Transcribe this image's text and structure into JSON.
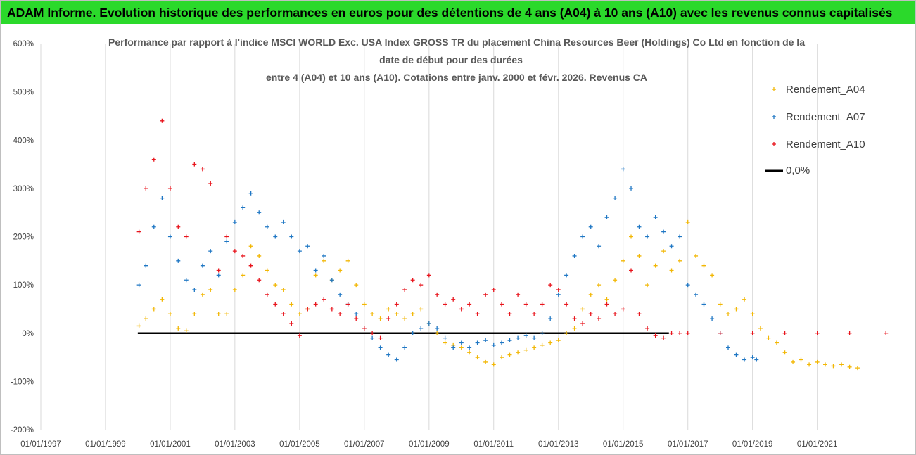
{
  "header": {
    "banner": "ADAM Informe. Evolution historique des performances en euros pour des détentions de 4 ans (A04) à 10 ans (A10) avec les revenus connus capitalisés"
  },
  "colors": {
    "banner_bg": "#2bd92b",
    "A04": "#f2b705",
    "A07": "#1f77c4",
    "A10": "#e8141c",
    "zero": "#000000",
    "grid": "#d9d9d9"
  },
  "chart_data": {
    "type": "scatter",
    "title_lines": [
      "Performance par rapport à l'indice MSCI WORLD Exc. USA Index GROSS TR  du placement China Resources Beer (Holdings) Co Ltd en fonction de la",
      "date de début pour des durées",
      "entre 4 (A04) et 10 ans (A10). Cotations entre janv. 2000 et févr. 2026. Revenus CA"
    ],
    "xlabel": "",
    "ylabel": "",
    "x_ticks": [
      "01/01/1997",
      "01/01/1999",
      "01/01/2001",
      "01/01/2003",
      "01/01/2005",
      "01/01/2007",
      "01/01/2009",
      "01/01/2011",
      "01/01/2013",
      "01/01/2015",
      "01/01/2017",
      "01/01/2019",
      "01/01/2021"
    ],
    "x_range": [
      "1997-01-01",
      "2023-03-01"
    ],
    "y_ticks": [
      "-200%",
      "-100%",
      "0%",
      "100%",
      "200%",
      "300%",
      "400%",
      "500%",
      "600%"
    ],
    "ylim": [
      -200,
      600
    ],
    "grid": "vertical",
    "legend_position": "right",
    "legend": [
      {
        "label": "Rendement_A04",
        "key": "A04",
        "marker": "+"
      },
      {
        "label": "Rendement_A07",
        "key": "A07",
        "marker": "+"
      },
      {
        "label": "Rendement_A10",
        "key": "A10",
        "marker": "+"
      },
      {
        "label": "0,0%",
        "key": "zero",
        "marker": "line"
      }
    ],
    "series": [
      {
        "name": "Rendement_A04",
        "key": "A04",
        "points": [
          [
            "2000-01-15",
            15
          ],
          [
            "2000-04-01",
            30
          ],
          [
            "2000-07-01",
            50
          ],
          [
            "2000-10-01",
            70
          ],
          [
            "2001-01-01",
            40
          ],
          [
            "2001-04-01",
            10
          ],
          [
            "2001-07-01",
            5
          ],
          [
            "2001-10-01",
            40
          ],
          [
            "2002-01-01",
            80
          ],
          [
            "2002-04-01",
            90
          ],
          [
            "2002-07-01",
            40
          ],
          [
            "2002-10-01",
            40
          ],
          [
            "2003-01-01",
            90
          ],
          [
            "2003-04-01",
            120
          ],
          [
            "2003-07-01",
            180
          ],
          [
            "2003-10-01",
            160
          ],
          [
            "2004-01-01",
            130
          ],
          [
            "2004-04-01",
            100
          ],
          [
            "2004-07-01",
            90
          ],
          [
            "2004-10-01",
            60
          ],
          [
            "2005-01-01",
            40
          ],
          [
            "2005-04-01",
            50
          ],
          [
            "2005-07-01",
            120
          ],
          [
            "2005-10-01",
            150
          ],
          [
            "2006-01-01",
            110
          ],
          [
            "2006-04-01",
            130
          ],
          [
            "2006-07-01",
            150
          ],
          [
            "2006-10-01",
            100
          ],
          [
            "2007-01-01",
            60
          ],
          [
            "2007-04-01",
            40
          ],
          [
            "2007-07-01",
            30
          ],
          [
            "2007-10-01",
            50
          ],
          [
            "2008-01-01",
            40
          ],
          [
            "2008-04-01",
            30
          ],
          [
            "2008-07-01",
            40
          ],
          [
            "2008-10-01",
            50
          ],
          [
            "2009-01-01",
            20
          ],
          [
            "2009-04-01",
            0
          ],
          [
            "2009-07-01",
            -20
          ],
          [
            "2009-10-01",
            -25
          ],
          [
            "2010-01-01",
            -30
          ],
          [
            "2010-04-01",
            -40
          ],
          [
            "2010-07-01",
            -50
          ],
          [
            "2010-10-01",
            -60
          ],
          [
            "2011-01-01",
            -65
          ],
          [
            "2011-04-01",
            -50
          ],
          [
            "2011-07-01",
            -45
          ],
          [
            "2011-10-01",
            -40
          ],
          [
            "2012-01-01",
            -35
          ],
          [
            "2012-04-01",
            -30
          ],
          [
            "2012-07-01",
            -25
          ],
          [
            "2012-10-01",
            -20
          ],
          [
            "2013-01-01",
            -15
          ],
          [
            "2013-04-01",
            0
          ],
          [
            "2013-07-01",
            10
          ],
          [
            "2013-10-01",
            50
          ],
          [
            "2014-01-01",
            80
          ],
          [
            "2014-04-01",
            100
          ],
          [
            "2014-07-01",
            70
          ],
          [
            "2014-10-01",
            110
          ],
          [
            "2015-01-01",
            150
          ],
          [
            "2015-04-01",
            200
          ],
          [
            "2015-07-01",
            160
          ],
          [
            "2015-10-01",
            100
          ],
          [
            "2016-01-01",
            140
          ],
          [
            "2016-04-01",
            170
          ],
          [
            "2016-07-01",
            130
          ],
          [
            "2016-10-01",
            150
          ],
          [
            "2017-01-01",
            230
          ],
          [
            "2017-04-01",
            160
          ],
          [
            "2017-07-01",
            140
          ],
          [
            "2017-10-01",
            120
          ],
          [
            "2018-01-01",
            60
          ],
          [
            "2018-04-01",
            40
          ],
          [
            "2018-07-01",
            50
          ],
          [
            "2018-10-01",
            70
          ],
          [
            "2019-01-01",
            40
          ],
          [
            "2019-04-01",
            10
          ],
          [
            "2019-07-01",
            -10
          ],
          [
            "2019-10-01",
            -20
          ],
          [
            "2020-01-01",
            -40
          ],
          [
            "2020-04-01",
            -60
          ],
          [
            "2020-07-01",
            -55
          ],
          [
            "2020-10-01",
            -65
          ],
          [
            "2021-01-01",
            -60
          ],
          [
            "2021-04-01",
            -65
          ],
          [
            "2021-07-01",
            -68
          ],
          [
            "2021-10-01",
            -65
          ],
          [
            "2022-01-01",
            -70
          ],
          [
            "2022-04-01",
            -72
          ]
        ]
      },
      {
        "name": "Rendement_A07",
        "key": "A07",
        "points": [
          [
            "2000-01-15",
            100
          ],
          [
            "2000-04-01",
            140
          ],
          [
            "2000-07-01",
            220
          ],
          [
            "2000-10-01",
            280
          ],
          [
            "2001-01-01",
            200
          ],
          [
            "2001-04-01",
            150
          ],
          [
            "2001-07-01",
            110
          ],
          [
            "2001-10-01",
            90
          ],
          [
            "2002-01-01",
            140
          ],
          [
            "2002-04-01",
            170
          ],
          [
            "2002-07-01",
            120
          ],
          [
            "2002-10-01",
            190
          ],
          [
            "2003-01-01",
            230
          ],
          [
            "2003-04-01",
            260
          ],
          [
            "2003-07-01",
            290
          ],
          [
            "2003-10-01",
            250
          ],
          [
            "2004-01-01",
            220
          ],
          [
            "2004-04-01",
            200
          ],
          [
            "2004-07-01",
            230
          ],
          [
            "2004-10-01",
            200
          ],
          [
            "2005-01-01",
            170
          ],
          [
            "2005-04-01",
            180
          ],
          [
            "2005-07-01",
            130
          ],
          [
            "2005-10-01",
            160
          ],
          [
            "2006-01-01",
            110
          ],
          [
            "2006-04-01",
            80
          ],
          [
            "2006-07-01",
            60
          ],
          [
            "2006-10-01",
            40
          ],
          [
            "2007-01-01",
            10
          ],
          [
            "2007-04-01",
            -10
          ],
          [
            "2007-07-01",
            -30
          ],
          [
            "2007-10-01",
            -45
          ],
          [
            "2008-01-01",
            -55
          ],
          [
            "2008-04-01",
            -30
          ],
          [
            "2008-07-01",
            0
          ],
          [
            "2008-10-01",
            10
          ],
          [
            "2009-01-01",
            20
          ],
          [
            "2009-04-01",
            10
          ],
          [
            "2009-07-01",
            -10
          ],
          [
            "2009-10-01",
            -30
          ],
          [
            "2010-01-01",
            -20
          ],
          [
            "2010-04-01",
            -30
          ],
          [
            "2010-07-01",
            -20
          ],
          [
            "2010-10-01",
            -15
          ],
          [
            "2011-01-01",
            -25
          ],
          [
            "2011-04-01",
            -20
          ],
          [
            "2011-07-01",
            -15
          ],
          [
            "2011-10-01",
            -10
          ],
          [
            "2012-01-01",
            -5
          ],
          [
            "2012-04-01",
            -10
          ],
          [
            "2012-07-01",
            0
          ],
          [
            "2012-10-01",
            30
          ],
          [
            "2013-01-01",
            80
          ],
          [
            "2013-04-01",
            120
          ],
          [
            "2013-07-01",
            160
          ],
          [
            "2013-10-01",
            200
          ],
          [
            "2014-01-01",
            220
          ],
          [
            "2014-04-01",
            180
          ],
          [
            "2014-07-01",
            240
          ],
          [
            "2014-10-01",
            280
          ],
          [
            "2015-01-01",
            340
          ],
          [
            "2015-04-01",
            300
          ],
          [
            "2015-07-01",
            220
          ],
          [
            "2015-10-01",
            200
          ],
          [
            "2016-01-01",
            240
          ],
          [
            "2016-04-01",
            210
          ],
          [
            "2016-07-01",
            180
          ],
          [
            "2016-10-01",
            200
          ],
          [
            "2017-01-01",
            100
          ],
          [
            "2017-04-01",
            80
          ],
          [
            "2017-07-01",
            60
          ],
          [
            "2017-10-01",
            30
          ],
          [
            "2018-01-01",
            0
          ],
          [
            "2018-04-01",
            -30
          ],
          [
            "2018-07-01",
            -45
          ],
          [
            "2018-10-01",
            -55
          ],
          [
            "2019-01-01",
            -50
          ],
          [
            "2019-02-15",
            -55
          ]
        ]
      },
      {
        "name": "Rendement_A10",
        "key": "A10",
        "points": [
          [
            "2000-01-15",
            210
          ],
          [
            "2000-04-01",
            300
          ],
          [
            "2000-07-01",
            360
          ],
          [
            "2000-10-01",
            440
          ],
          [
            "2001-01-01",
            300
          ],
          [
            "2001-04-01",
            220
          ],
          [
            "2001-07-01",
            200
          ],
          [
            "2001-10-01",
            350
          ],
          [
            "2002-01-01",
            340
          ],
          [
            "2002-04-01",
            310
          ],
          [
            "2002-07-01",
            130
          ],
          [
            "2002-10-01",
            200
          ],
          [
            "2003-01-01",
            170
          ],
          [
            "2003-04-01",
            160
          ],
          [
            "2003-07-01",
            140
          ],
          [
            "2003-10-01",
            110
          ],
          [
            "2004-01-01",
            80
          ],
          [
            "2004-04-01",
            60
          ],
          [
            "2004-07-01",
            40
          ],
          [
            "2004-10-01",
            20
          ],
          [
            "2005-01-01",
            -5
          ],
          [
            "2005-04-01",
            50
          ],
          [
            "2005-07-01",
            60
          ],
          [
            "2005-10-01",
            70
          ],
          [
            "2006-01-01",
            50
          ],
          [
            "2006-04-01",
            40
          ],
          [
            "2006-07-01",
            60
          ],
          [
            "2006-10-01",
            30
          ],
          [
            "2007-01-01",
            10
          ],
          [
            "2007-04-01",
            0
          ],
          [
            "2007-07-01",
            -10
          ],
          [
            "2007-10-01",
            30
          ],
          [
            "2008-01-01",
            60
          ],
          [
            "2008-04-01",
            90
          ],
          [
            "2008-07-01",
            110
          ],
          [
            "2008-10-01",
            100
          ],
          [
            "2009-01-01",
            120
          ],
          [
            "2009-04-01",
            80
          ],
          [
            "2009-07-01",
            60
          ],
          [
            "2009-10-01",
            70
          ],
          [
            "2010-01-01",
            50
          ],
          [
            "2010-04-01",
            60
          ],
          [
            "2010-07-01",
            40
          ],
          [
            "2010-10-01",
            80
          ],
          [
            "2011-01-01",
            90
          ],
          [
            "2011-04-01",
            60
          ],
          [
            "2011-07-01",
            40
          ],
          [
            "2011-10-01",
            80
          ],
          [
            "2012-01-01",
            60
          ],
          [
            "2012-04-01",
            40
          ],
          [
            "2012-07-01",
            60
          ],
          [
            "2012-10-01",
            100
          ],
          [
            "2013-01-01",
            90
          ],
          [
            "2013-04-01",
            60
          ],
          [
            "2013-07-01",
            30
          ],
          [
            "2013-10-01",
            20
          ],
          [
            "2014-01-01",
            40
          ],
          [
            "2014-04-01",
            30
          ],
          [
            "2014-07-01",
            60
          ],
          [
            "2014-10-01",
            40
          ],
          [
            "2015-01-01",
            50
          ],
          [
            "2015-04-01",
            130
          ],
          [
            "2015-07-01",
            40
          ],
          [
            "2015-10-01",
            10
          ],
          [
            "2016-01-01",
            -5
          ],
          [
            "2016-04-01",
            -10
          ],
          [
            "2016-07-01",
            0
          ],
          [
            "2016-10-01",
            0
          ],
          [
            "2017-01-01",
            0
          ],
          [
            "2018-01-01",
            0
          ],
          [
            "2019-01-01",
            0
          ],
          [
            "2020-01-01",
            0
          ],
          [
            "2021-01-01",
            0
          ],
          [
            "2022-01-01",
            0
          ],
          [
            "2023-02-15",
            0
          ]
        ]
      }
    ],
    "zero_line": {
      "from": "2000-01-01",
      "to": "2016-06-01",
      "value": 0
    }
  }
}
